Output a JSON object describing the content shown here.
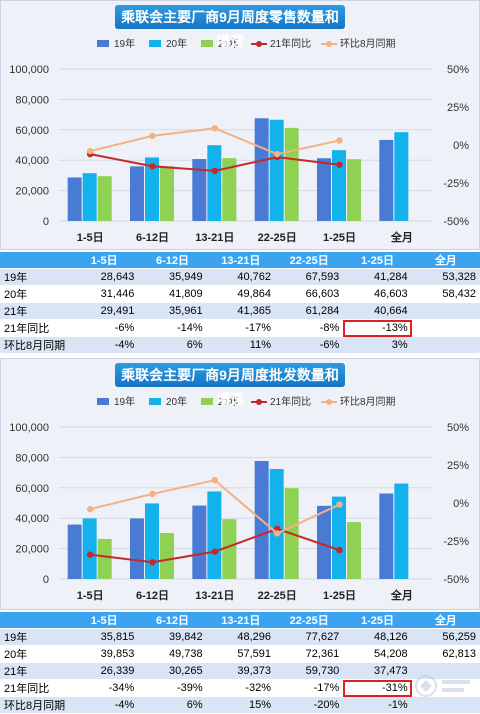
{
  "chart_data": [
    {
      "type": "bar",
      "title": "乘联会主要厂商9月周度零售数量和增速",
      "categories": [
        "1-5日",
        "6-12日",
        "13-21日",
        "22-25日",
        "1-25日",
        "全月"
      ],
      "series": [
        {
          "name": "19年",
          "kind": "bar",
          "color": "#4a7bd4",
          "values": [
            28643,
            35949,
            40762,
            67593,
            41284,
            53328
          ]
        },
        {
          "name": "20年",
          "kind": "bar",
          "color": "#13b2ec",
          "values": [
            31446,
            41809,
            49864,
            66603,
            46603,
            58432
          ]
        },
        {
          "name": "21年",
          "kind": "bar",
          "color": "#8fd153",
          "values": [
            29491,
            35961,
            41365,
            61284,
            40664,
            null
          ]
        },
        {
          "name": "21年同比",
          "kind": "line",
          "axis": "right",
          "color": "#c62828",
          "values": [
            -0.06,
            -0.14,
            -0.17,
            -0.08,
            -0.13,
            null
          ]
        },
        {
          "name": "环比8月同期",
          "kind": "line",
          "axis": "right",
          "color": "#f4b183",
          "values": [
            -0.04,
            0.06,
            0.11,
            -0.06,
            0.03,
            null
          ]
        }
      ],
      "ylim": [
        0,
        100000
      ],
      "yticks": [
        "0",
        "20,000",
        "40,000",
        "60,000",
        "80,000",
        "100,000"
      ],
      "y2lim": [
        -0.5,
        0.5
      ],
      "y2ticks": [
        "-50%",
        "-25%",
        "0%",
        "25%",
        "50%"
      ],
      "legend": "top",
      "table": {
        "header": [
          "",
          "1-5日",
          "6-12日",
          "13-21日",
          "22-25日",
          "1-25日",
          "全月"
        ],
        "rows": [
          [
            "19年",
            "28,643",
            "35,949",
            "40,762",
            "67,593",
            "41,284",
            "53,328"
          ],
          [
            "20年",
            "31,446",
            "41,809",
            "49,864",
            "66,603",
            "46,603",
            "58,432"
          ],
          [
            "21年",
            "29,491",
            "35,961",
            "41,365",
            "61,284",
            "40,664",
            ""
          ],
          [
            "21年同比",
            "-6%",
            "-14%",
            "-17%",
            "-8%",
            "-13%",
            ""
          ],
          [
            "环比8月同期",
            "-4%",
            "6%",
            "11%",
            "-6%",
            "3%",
            ""
          ]
        ],
        "highlight": {
          "row": 3,
          "col": 5
        }
      }
    },
    {
      "type": "bar",
      "title": "乘联会主要厂商9月周度批发数量和增速",
      "categories": [
        "1-5日",
        "6-12日",
        "13-21日",
        "22-25日",
        "1-25日",
        "全月"
      ],
      "series": [
        {
          "name": "19年",
          "kind": "bar",
          "color": "#4a7bd4",
          "values": [
            35815,
            39842,
            48296,
            77627,
            48126,
            56259
          ]
        },
        {
          "name": "20年",
          "kind": "bar",
          "color": "#13b2ec",
          "values": [
            39853,
            49738,
            57591,
            72361,
            54208,
            62813
          ]
        },
        {
          "name": "21年",
          "kind": "bar",
          "color": "#8fd153",
          "values": [
            26339,
            30265,
            39373,
            59730,
            37473,
            null
          ]
        },
        {
          "name": "21年同比",
          "kind": "line",
          "axis": "right",
          "color": "#c62828",
          "values": [
            -0.34,
            -0.39,
            -0.32,
            -0.17,
            -0.31,
            null
          ]
        },
        {
          "name": "环比8月同期",
          "kind": "line",
          "axis": "right",
          "color": "#f4b183",
          "values": [
            -0.04,
            0.06,
            0.15,
            -0.2,
            -0.01,
            null
          ]
        }
      ],
      "ylim": [
        0,
        100000
      ],
      "yticks": [
        "0",
        "20,000",
        "40,000",
        "60,000",
        "80,000",
        "100,000"
      ],
      "y2lim": [
        -0.5,
        0.5
      ],
      "y2ticks": [
        "-50%",
        "-25%",
        "0%",
        "25%",
        "50%"
      ],
      "legend": "top",
      "table": {
        "header": [
          "",
          "1-5日",
          "6-12日",
          "13-21日",
          "22-25日",
          "1-25日",
          "全月"
        ],
        "rows": [
          [
            "19年",
            "35,815",
            "39,842",
            "48,296",
            "77,627",
            "48,126",
            "56,259"
          ],
          [
            "20年",
            "39,853",
            "49,738",
            "57,591",
            "72,361",
            "54,208",
            "62,813"
          ],
          [
            "21年",
            "26,339",
            "30,265",
            "39,373",
            "59,730",
            "37,473",
            ""
          ],
          [
            "21年同比",
            "-34%",
            "-39%",
            "-32%",
            "-17%",
            "-31%",
            ""
          ],
          [
            "环比8月同期",
            "-4%",
            "6%",
            "15%",
            "-20%",
            "-1%",
            ""
          ]
        ],
        "highlight": {
          "row": 3,
          "col": 5
        }
      }
    }
  ],
  "watermark": "汽车之家"
}
